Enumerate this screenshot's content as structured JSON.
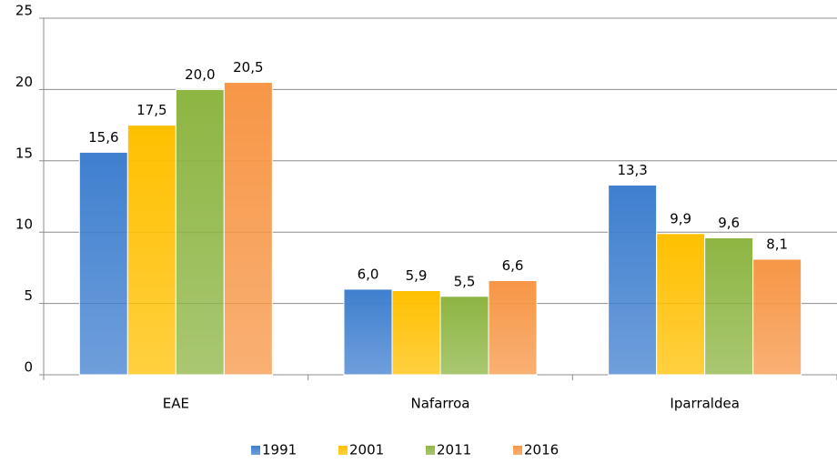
{
  "chart_data": {
    "type": "bar",
    "categories": [
      "EAE",
      "Nafarroa",
      "Iparraldea"
    ],
    "series": [
      {
        "name": "1991",
        "color": "#3f7fcf",
        "values": [
          15.6,
          6.0,
          13.3
        ],
        "value_labels": [
          "15,6",
          "6,0",
          "13,3"
        ]
      },
      {
        "name": "2001",
        "color": "#ffc000",
        "values": [
          17.5,
          5.9,
          9.9
        ],
        "value_labels": [
          "17,5",
          "5,9",
          "9,9"
        ]
      },
      {
        "name": "2011",
        "color": "#8db542",
        "values": [
          20.0,
          5.5,
          9.6
        ],
        "value_labels": [
          "20,0",
          "5,5",
          "9,6"
        ]
      },
      {
        "name": "2016",
        "color": "#f79646",
        "values": [
          20.5,
          6.6,
          8.1
        ],
        "value_labels": [
          "20,5",
          "6,6",
          "8,1"
        ]
      }
    ],
    "ylim": [
      0,
      25
    ],
    "yticks": [
      0,
      5,
      10,
      15,
      20,
      25
    ],
    "grid": true,
    "legend": "bottom"
  }
}
